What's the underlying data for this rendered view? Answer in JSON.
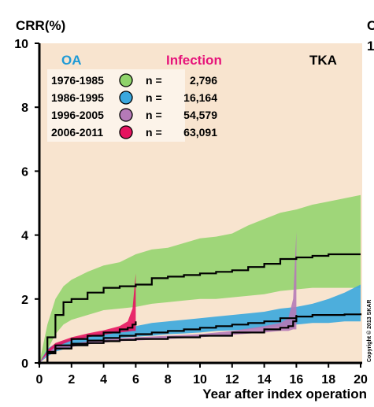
{
  "chart_data": {
    "type": "line",
    "title_left": "OA",
    "title_middle": "Infection",
    "title_right": "TKA",
    "ylabel": "CRR(%)",
    "xlabel": "Year after index operation",
    "xlim": [
      0,
      20
    ],
    "ylim": [
      0,
      10
    ],
    "x_ticks": [
      "0",
      "2",
      "4",
      "6",
      "8",
      "10",
      "12",
      "14",
      "16",
      "18",
      "20"
    ],
    "y_ticks": [
      "0",
      "2",
      "4",
      "6",
      "8",
      "10"
    ],
    "right_edge_labels": [
      "C",
      "1"
    ],
    "copyright": "Copyright © 2013 SKAR",
    "colors": {
      "background": "#f8e4cf",
      "oa_title": "#1f9ad6",
      "infection_title": "#e6147a",
      "tka_title": "#000000",
      "green": "#8fd36a",
      "blue": "#3aa7dd",
      "purple": "#b57ab7",
      "pink": "#e6145f",
      "line": "#000000"
    },
    "legend": [
      {
        "period": "1976-1985",
        "n_label": "n =",
        "n": "2,796",
        "color": "#8fd36a"
      },
      {
        "period": "1986-1995",
        "n_label": "n =",
        "n": "16,164",
        "color": "#3aa7dd"
      },
      {
        "period": "1996-2005",
        "n_label": "n =",
        "n": "54,579",
        "color": "#b57ab7"
      },
      {
        "period": "2006-2011",
        "n_label": "n =",
        "n": "63,091",
        "color": "#e6145f"
      }
    ],
    "series": [
      {
        "period": "1976-1985",
        "color": "#8fd36a",
        "x": [
          0,
          0.5,
          1,
          1.5,
          2,
          3,
          4,
          5,
          6,
          7,
          8,
          9,
          10,
          11,
          12,
          13,
          14,
          15,
          16,
          17,
          18,
          19,
          20
        ],
        "y": [
          0,
          0.8,
          1.5,
          1.9,
          2.0,
          2.2,
          2.35,
          2.4,
          2.45,
          2.65,
          2.7,
          2.75,
          2.8,
          2.85,
          2.9,
          3.0,
          3.1,
          3.25,
          3.3,
          3.35,
          3.4,
          3.4,
          3.4
        ],
        "lower": [
          0,
          0.4,
          0.9,
          1.2,
          1.35,
          1.5,
          1.65,
          1.7,
          1.75,
          1.85,
          1.9,
          1.95,
          2.0,
          2.0,
          2.05,
          2.1,
          2.15,
          2.25,
          2.3,
          2.35,
          2.35,
          2.35,
          2.35
        ],
        "upper": [
          0,
          1.2,
          2.0,
          2.4,
          2.6,
          2.85,
          3.05,
          3.15,
          3.4,
          3.55,
          3.6,
          3.75,
          3.9,
          3.95,
          4.05,
          4.3,
          4.5,
          4.7,
          4.8,
          4.95,
          5.05,
          5.15,
          5.25
        ]
      },
      {
        "period": "1986-1995",
        "color": "#3aa7dd",
        "x": [
          0,
          0.5,
          1,
          2,
          3,
          4,
          5,
          6,
          7,
          8,
          9,
          10,
          11,
          12,
          13,
          14,
          15,
          16,
          17,
          18,
          19,
          20
        ],
        "y": [
          0,
          0.3,
          0.45,
          0.6,
          0.7,
          0.78,
          0.85,
          0.9,
          0.95,
          1.0,
          1.05,
          1.1,
          1.15,
          1.2,
          1.25,
          1.3,
          1.4,
          1.45,
          1.5,
          1.5,
          1.52,
          1.55
        ],
        "lower": [
          0,
          0.2,
          0.35,
          0.5,
          0.6,
          0.7,
          0.78,
          0.82,
          0.85,
          0.9,
          0.92,
          0.95,
          1.0,
          1.02,
          1.05,
          1.1,
          1.15,
          1.2,
          1.25,
          1.25,
          1.3,
          1.3
        ],
        "upper": [
          0,
          0.45,
          0.6,
          0.75,
          0.85,
          0.95,
          1.05,
          1.15,
          1.25,
          1.3,
          1.35,
          1.4,
          1.45,
          1.5,
          1.55,
          1.6,
          1.7,
          1.75,
          1.85,
          2.0,
          2.2,
          2.45
        ]
      },
      {
        "period": "1996-2005",
        "color": "#b57ab7",
        "x": [
          0,
          0.5,
          1,
          2,
          3,
          4,
          5,
          6,
          8,
          10,
          12,
          14,
          15,
          15.5,
          15.8,
          16
        ],
        "y": [
          0,
          0.3,
          0.45,
          0.55,
          0.62,
          0.68,
          0.72,
          0.75,
          0.8,
          0.85,
          0.95,
          1.05,
          1.1,
          1.15,
          1.3,
          1.5
        ],
        "lower": [
          0,
          0.25,
          0.4,
          0.5,
          0.58,
          0.63,
          0.68,
          0.7,
          0.75,
          0.8,
          0.88,
          0.95,
          1.0,
          1.0,
          1.05,
          1.05
        ],
        "upper": [
          0,
          0.35,
          0.5,
          0.6,
          0.67,
          0.73,
          0.77,
          0.8,
          0.85,
          0.9,
          1.0,
          1.15,
          1.25,
          1.4,
          2.0,
          4.1
        ]
      },
      {
        "period": "2006-2011",
        "color": "#e6145f",
        "x": [
          0,
          0.5,
          1,
          2,
          3,
          4,
          5,
          5.5,
          5.8,
          6
        ],
        "y": [
          0,
          0.35,
          0.55,
          0.75,
          0.85,
          0.95,
          1.05,
          1.1,
          1.2,
          1.3
        ],
        "lower": [
          0,
          0.3,
          0.5,
          0.7,
          0.8,
          0.88,
          0.95,
          0.98,
          1.0,
          1.0
        ],
        "upper": [
          0,
          0.4,
          0.62,
          0.8,
          0.92,
          1.02,
          1.15,
          1.3,
          1.7,
          2.8
        ]
      }
    ]
  }
}
